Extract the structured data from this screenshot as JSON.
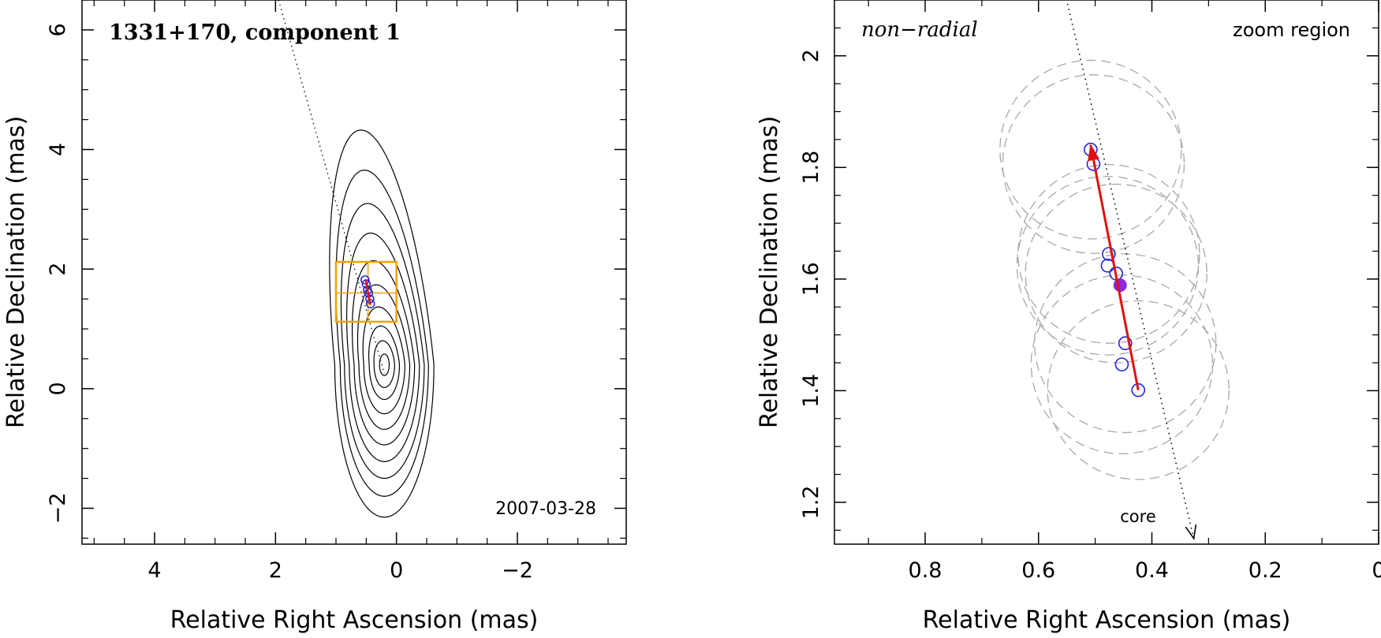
{
  "chart_data": [
    {
      "type": "scatter",
      "title": "1331+170, component 1",
      "date": "2007-03-28",
      "xlabel": "Relative Right Ascension (mas)",
      "ylabel": "Relative Declination (mas)",
      "xlim": [
        5.2,
        -3.8
      ],
      "ylim": [
        -2.6,
        6.5
      ],
      "x_ticks": [
        4,
        2,
        0,
        -2
      ],
      "x_tick_labels": [
        "4",
        "2",
        "0",
        "−2"
      ],
      "y_ticks": [
        -2,
        0,
        2,
        4,
        6
      ],
      "y_tick_labels": [
        "−2",
        "0",
        "2",
        "4",
        "6"
      ],
      "contours": {
        "center": [
          0.2,
          0.4
        ],
        "levels_half_width": [
          0.08,
          0.17,
          0.25,
          0.34,
          0.42,
          0.5,
          0.58,
          0.66,
          0.73,
          0.82
        ],
        "levels_half_height": [
          0.18,
          0.38,
          0.58,
          0.82,
          1.08,
          1.34,
          1.62,
          1.9,
          2.2,
          2.55
        ],
        "upper_elongation": 0.6
      },
      "zoom_box": {
        "x": [
          0.0,
          1.0
        ],
        "y": [
          1.12,
          2.12
        ],
        "divider_x": 0.47,
        "divider_y": 1.6
      },
      "trajectory_line": [
        [
          1.95,
          6.5
        ],
        [
          0.2,
          0.25
        ]
      ],
      "points": [
        [
          0.52,
          1.82
        ],
        [
          0.5,
          1.75
        ],
        [
          0.48,
          1.65
        ],
        [
          0.46,
          1.6
        ],
        [
          0.44,
          1.5
        ],
        [
          0.43,
          1.42
        ]
      ],
      "velocity_arrow": [
        [
          0.43,
          1.4
        ],
        [
          0.51,
          1.83
        ]
      ]
    },
    {
      "type": "scatter",
      "title": "zoom region",
      "annotation": "non−radial",
      "core_label": "core",
      "xlabel": "Relative Right Ascension (mas)",
      "ylabel": "Relative Declination (mas)",
      "xlim": [
        0.96,
        0.0
      ],
      "ylim": [
        1.125,
        2.1
      ],
      "x_ticks": [
        0.8,
        0.6,
        0.4,
        0.2,
        0
      ],
      "x_tick_labels": [
        "0.8",
        "0.6",
        "0.4",
        "0.2",
        "0"
      ],
      "y_ticks": [
        1.2,
        1.4,
        1.6,
        1.8,
        2.0
      ],
      "y_tick_labels": [
        "1.2",
        "1.4",
        "1.6",
        "1.8",
        "2"
      ],
      "points": [
        [
          0.508,
          1.832
        ],
        [
          0.503,
          1.806
        ],
        [
          0.476,
          1.645
        ],
        [
          0.478,
          1.624
        ],
        [
          0.463,
          1.61
        ],
        [
          0.447,
          1.485
        ],
        [
          0.453,
          1.447
        ],
        [
          0.424,
          1.401
        ]
      ],
      "mean_point": [
        0.456,
        1.589
      ],
      "uncertainty_radius_mas": 0.16,
      "core_line": [
        [
          0.555,
          2.12
        ],
        [
          0.326,
          1.135
        ]
      ],
      "velocity_arrow": [
        [
          0.424,
          1.401
        ],
        [
          0.508,
          1.84
        ]
      ],
      "colors": {
        "points": "#2323d6",
        "mean": "#8a2be2",
        "arrow": "#e01010",
        "circles": "#a8a8a8",
        "box": "#f5a000"
      }
    }
  ]
}
